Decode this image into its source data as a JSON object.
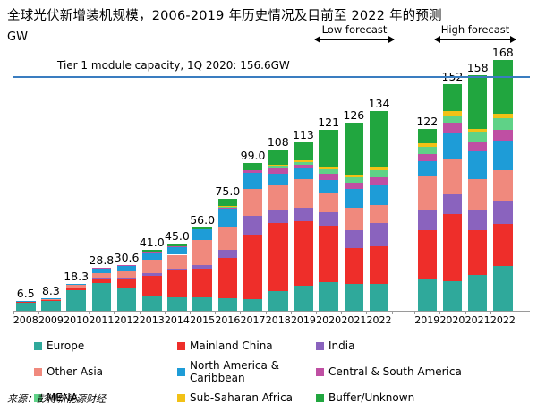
{
  "title": "全球光伏新增装机规模，2006-2019 年历史情况及目前至 2022 年的预测",
  "unit_label": "GW",
  "annotations": {
    "tier1_label": "Tier 1 module capacity, 1Q 2020: 156.6GW",
    "tier1_value_gw": 156.6,
    "low_forecast_label": "Low forecast",
    "high_forecast_label": "High forecast"
  },
  "source": "来源：彭博新能源财经",
  "colors": {
    "tier1_line": "#3a7dc0",
    "axis": "#9a9a9a",
    "text": "#000000"
  },
  "chart_data": {
    "type": "bar",
    "stacked": true,
    "unit": "GW",
    "ylim": [
      0,
      175
    ],
    "grid": false,
    "legend_position": "bottom",
    "groups": [
      {
        "name": "history-and-low-forecast",
        "years": [
          "2008",
          "2009",
          "2010",
          "2011",
          "2012",
          "2013",
          "2014",
          "2015",
          "2016",
          "2017",
          "2018",
          "2019",
          "2020",
          "2021",
          "2022"
        ]
      },
      {
        "name": "high-forecast",
        "years": [
          "2019",
          "2020",
          "2021",
          "2022"
        ]
      }
    ],
    "categories": [
      "2008",
      "2009",
      "2010",
      "2011",
      "2012",
      "2013",
      "2014",
      "2015",
      "2016",
      "2017",
      "2018",
      "2019",
      "2020",
      "2021",
      "2022",
      "2019",
      "2020",
      "2021",
      "2022"
    ],
    "totals": [
      6.5,
      8.3,
      18.3,
      28.8,
      30.6,
      41.0,
      45.0,
      56.0,
      75.0,
      99.0,
      108,
      113,
      121,
      126,
      134,
      122,
      152,
      158,
      168
    ],
    "total_labels": [
      "6.5",
      "8.3",
      "18.3",
      "28.8",
      "30.6",
      "41.0",
      "45.0",
      "56.0",
      "75.0",
      "99.0",
      "108",
      "113",
      "121",
      "126",
      "134",
      "122",
      "152",
      "158",
      "168"
    ],
    "series": [
      {
        "name": "Europe",
        "color": "#2fa99b",
        "values": [
          5.9,
          7.2,
          13.8,
          18.5,
          15.6,
          10.2,
          9.0,
          9.0,
          8.4,
          7.8,
          13.2,
          17.0,
          19.2,
          18.0,
          18.0,
          21.0,
          19.8,
          24.0,
          30.0
        ]
      },
      {
        "name": "Mainland China",
        "color": "#ee2e2a",
        "values": [
          0.1,
          0.3,
          1.8,
          3.3,
          6.0,
          13.2,
          17.8,
          19.4,
          27.0,
          43.2,
          45.6,
          43.0,
          37.8,
          24.0,
          25.2,
          33.0,
          45.0,
          30.0,
          28.2
        ]
      },
      {
        "name": "India",
        "color": "#8a63be",
        "values": [
          0.0,
          0.0,
          0.1,
          0.3,
          0.5,
          1.8,
          1.2,
          2.0,
          5.4,
          12.6,
          8.4,
          9.0,
          9.0,
          12.0,
          15.6,
          13.2,
          13.2,
          13.8,
          15.6
        ]
      },
      {
        "name": "Other Asia",
        "color": "#f0897d",
        "values": [
          0.4,
          0.6,
          1.6,
          3.4,
          4.2,
          9.0,
          9.5,
          16.8,
          15.0,
          18.0,
          16.8,
          19.2,
          13.2,
          15.0,
          12.0,
          22.8,
          24.0,
          20.4,
          20.4
        ]
      },
      {
        "name": "North America & Caribbean",
        "color": "#1e9cd7",
        "values": [
          0.1,
          0.2,
          1.0,
          3.0,
          4.0,
          5.4,
          5.5,
          7.2,
          12.6,
          10.8,
          7.8,
          7.2,
          8.4,
          12.6,
          13.8,
          10.2,
          16.8,
          18.6,
          19.8
        ]
      },
      {
        "name": "Central & South America",
        "color": "#bf4fa3",
        "values": [
          0.0,
          0.0,
          0.0,
          0.3,
          0.3,
          0.2,
          0.2,
          0.0,
          0.6,
          1.8,
          3.6,
          2.4,
          4.2,
          4.2,
          4.8,
          4.8,
          7.2,
          6.0,
          7.2
        ]
      },
      {
        "name": "MENA",
        "color": "#5fd287",
        "values": [
          0.0,
          0.0,
          0.0,
          0.0,
          0.0,
          0.0,
          0.0,
          0.0,
          0.6,
          0.0,
          1.8,
          1.8,
          3.0,
          3.6,
          4.8,
          4.8,
          4.8,
          7.2,
          7.8
        ]
      },
      {
        "name": "Sub-Saharan Africa",
        "color": "#f2c116",
        "values": [
          0.0,
          0.0,
          0.0,
          0.0,
          0.0,
          0.0,
          0.0,
          0.0,
          0.6,
          0.0,
          0.6,
          1.2,
          1.2,
          1.8,
          1.8,
          2.4,
          3.0,
          1.8,
          3.0
        ]
      },
      {
        "name": "Buffer/Unknown",
        "color": "#21a63f",
        "values": [
          0.0,
          0.0,
          0.0,
          0.0,
          0.0,
          1.2,
          1.8,
          1.6,
          4.8,
          4.8,
          10.2,
          12.2,
          25.0,
          34.8,
          38.0,
          9.8,
          18.2,
          36.2,
          36.0
        ]
      }
    ]
  }
}
